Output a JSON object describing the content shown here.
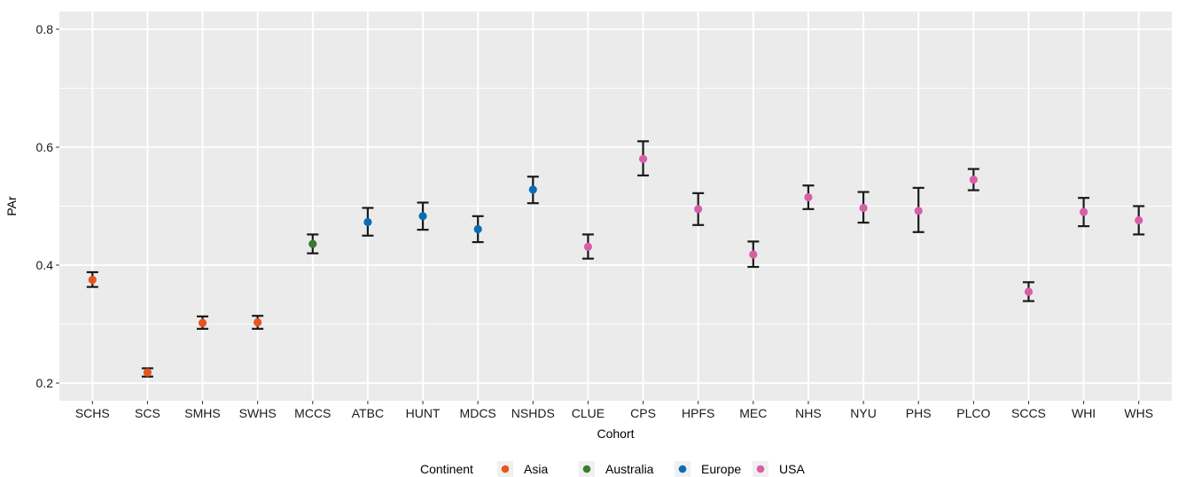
{
  "chart_data": {
    "type": "scatter",
    "xlabel": "Cohort",
    "ylabel": "PAr",
    "ylim": [
      0.17,
      0.83
    ],
    "yticks": [
      0.2,
      0.4,
      0.6,
      0.8
    ],
    "ytick_labels": [
      "0.2",
      "0.4",
      "0.6",
      "0.8"
    ],
    "grid": true,
    "legend_position": "bottom",
    "legend_title": "Continent",
    "colors": {
      "Asia": "#e8541e",
      "Australia": "#3c7a2f",
      "Europe": "#0a6db5",
      "USA": "#d75fa8"
    },
    "categories": [
      "SCHS",
      "SCS",
      "SMHS",
      "SWHS",
      "MCCS",
      "ATBC",
      "HUNT",
      "MDCS",
      "NSHDS",
      "CLUE",
      "CPS",
      "HPFS",
      "MEC",
      "NHS",
      "NYU",
      "PHS",
      "PLCO",
      "SCCS",
      "WHI",
      "WHS"
    ],
    "series": [
      {
        "name": "Asia",
        "points": [
          {
            "x": "SCHS",
            "y": 0.375,
            "lo": 0.363,
            "hi": 0.388
          },
          {
            "x": "SCS",
            "y": 0.218,
            "lo": 0.211,
            "hi": 0.225
          },
          {
            "x": "SMHS",
            "y": 0.302,
            "lo": 0.292,
            "hi": 0.313
          },
          {
            "x": "SWHS",
            "y": 0.303,
            "lo": 0.292,
            "hi": 0.314
          }
        ]
      },
      {
        "name": "Australia",
        "points": [
          {
            "x": "MCCS",
            "y": 0.436,
            "lo": 0.42,
            "hi": 0.452
          }
        ]
      },
      {
        "name": "Europe",
        "points": [
          {
            "x": "ATBC",
            "y": 0.473,
            "lo": 0.45,
            "hi": 0.497
          },
          {
            "x": "HUNT",
            "y": 0.483,
            "lo": 0.46,
            "hi": 0.506
          },
          {
            "x": "MDCS",
            "y": 0.461,
            "lo": 0.439,
            "hi": 0.483
          },
          {
            "x": "NSHDS",
            "y": 0.528,
            "lo": 0.505,
            "hi": 0.55
          }
        ]
      },
      {
        "name": "USA",
        "points": [
          {
            "x": "CLUE",
            "y": 0.431,
            "lo": 0.411,
            "hi": 0.452
          },
          {
            "x": "CPS",
            "y": 0.58,
            "lo": 0.552,
            "hi": 0.61
          },
          {
            "x": "HPFS",
            "y": 0.495,
            "lo": 0.468,
            "hi": 0.522
          },
          {
            "x": "MEC",
            "y": 0.418,
            "lo": 0.397,
            "hi": 0.44
          },
          {
            "x": "NHS",
            "y": 0.515,
            "lo": 0.495,
            "hi": 0.535
          },
          {
            "x": "NYU",
            "y": 0.497,
            "lo": 0.472,
            "hi": 0.524
          },
          {
            "x": "PHS",
            "y": 0.492,
            "lo": 0.456,
            "hi": 0.531
          },
          {
            "x": "PLCO",
            "y": 0.545,
            "lo": 0.527,
            "hi": 0.563
          },
          {
            "x": "SCCS",
            "y": 0.355,
            "lo": 0.339,
            "hi": 0.371
          },
          {
            "x": "WHI",
            "y": 0.49,
            "lo": 0.466,
            "hi": 0.514
          },
          {
            "x": "WHS",
            "y": 0.476,
            "lo": 0.452,
            "hi": 0.5
          }
        ]
      }
    ]
  }
}
